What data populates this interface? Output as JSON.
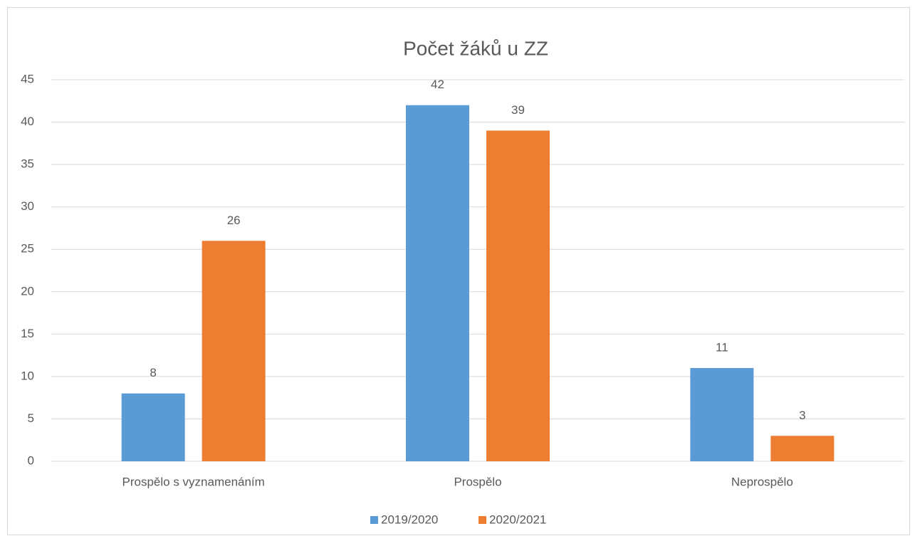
{
  "chart_data": {
    "type": "bar",
    "title": "Počet žáků u ZZ",
    "categories": [
      "Prospělo s vyznamenáním",
      "Prospělo",
      "Neprospělo"
    ],
    "series": [
      {
        "name": "2019/2020",
        "color": "#5b9bd5",
        "values": [
          8,
          42,
          11
        ]
      },
      {
        "name": "2020/2021",
        "color": "#ed7d31",
        "values": [
          26,
          39,
          3
        ]
      }
    ],
    "ylim": [
      0,
      45
    ],
    "yticks": [
      0,
      5,
      10,
      15,
      20,
      25,
      30,
      35,
      40,
      45
    ],
    "grid": true,
    "legend": "bottom"
  }
}
